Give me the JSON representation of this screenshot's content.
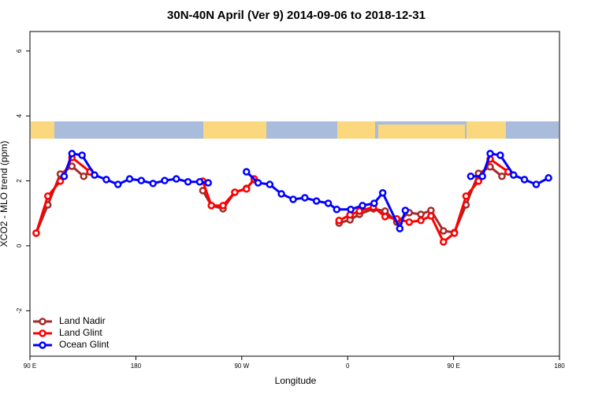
{
  "chart_data": {
    "type": "line",
    "title": "30N-40N April (Ver 9)   2014-09-06 to 2018-12-31",
    "x_label": "Longitude",
    "y_label": "XCO2 - MLO trend (ppm)",
    "xlim": [
      90,
      540
    ],
    "ylim": [
      -3.4,
      6.6
    ],
    "xticks": [
      {
        "value": 90,
        "label": "90 E"
      },
      180,
      {
        "value": 270,
        "label": "90 W"
      },
      {
        "value": 360,
        "label": "0"
      },
      {
        "value": 450,
        "label": "90 E"
      },
      {
        "value": 540,
        "label": "180"
      }
    ],
    "yticks": [
      -2,
      0,
      2,
      4,
      6
    ],
    "legend": "bottom-left",
    "series": [
      {
        "name": "Land Nadir",
        "color": "#a52a2a",
        "x": [
          95.3,
          105.2,
          115.8,
          125.7,
          135.7,
          141.0,
          190,
          236.9,
          244.2,
          254.1,
          264.1,
          274.0,
          280.6,
          320,
          352.7,
          362.0,
          370.0,
          381.9,
          391.8,
          401.7,
          412.3,
          422.2,
          430.8,
          441.4,
          450.7,
          460.6,
          471.2,
          481.1,
          491.1,
          496.4
        ],
        "values": [
          0.39,
          1.26,
          2.21,
          2.45,
          2.14,
          2.28,
          null,
          1.7,
          1.24,
          1.14,
          1.65,
          1.77,
          2.04,
          null,
          0.7,
          0.8,
          0.97,
          1.14,
          1.07,
          0.73,
          1.02,
          0.97,
          1.09,
          0.46,
          0.41,
          1.26,
          2.23,
          2.43,
          2.14,
          2.28
        ]
      },
      {
        "name": "Land Glint",
        "color": "#ff0000",
        "x": [
          95.3,
          105.2,
          115.8,
          125.7,
          141.0,
          190,
          236.9,
          244.2,
          254.1,
          264.1,
          274.0,
          280.6,
          320,
          352.7,
          362.0,
          370.0,
          381.9,
          391.8,
          401.7,
          412.3,
          422.2,
          430.8,
          441.4,
          450.7,
          460.6,
          471.2,
          481.1,
          496.4
        ],
        "values": [
          0.39,
          1.53,
          1.99,
          2.72,
          2.28,
          null,
          1.99,
          1.24,
          1.24,
          1.65,
          1.75,
          2.06,
          null,
          0.78,
          0.95,
          1.07,
          1.19,
          0.9,
          0.83,
          0.73,
          0.78,
          0.92,
          0.12,
          0.39,
          1.53,
          1.99,
          2.67,
          2.28
        ]
      },
      {
        "name": "Ocean Glint",
        "color": "#0000ff",
        "x": [
          119.1,
          125.7,
          134.3,
          144.9,
          154.9,
          164.8,
          174.7,
          184.6,
          194.6,
          204.5,
          214.4,
          224.3,
          234.3,
          241.5,
          260,
          274.0,
          283.9,
          293.8,
          303.7,
          313.7,
          323.6,
          333.5,
          343.5,
          350.7,
          362.6,
          372.6,
          382.5,
          389.8,
          404.3,
          409.0,
          440,
          464.6,
          474.5,
          481.1,
          489.7,
          501.0,
          510.2,
          520.2,
          530.7
        ],
        "values": [
          2.14,
          2.84,
          2.79,
          2.18,
          2.04,
          1.89,
          2.06,
          2.01,
          1.92,
          2.01,
          2.06,
          1.97,
          1.97,
          1.94,
          null,
          2.28,
          1.94,
          1.89,
          1.6,
          1.43,
          1.48,
          1.38,
          1.31,
          1.12,
          1.12,
          1.24,
          1.31,
          1.63,
          0.53,
          1.09,
          null,
          2.14,
          2.14,
          2.84,
          2.79,
          2.18,
          2.04,
          1.89,
          2.09
        ]
      }
    ]
  }
}
